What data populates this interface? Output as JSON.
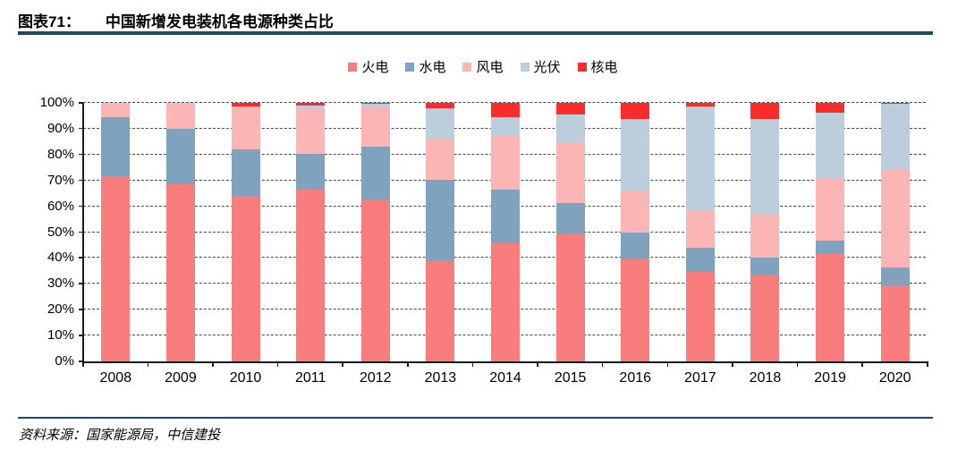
{
  "header": {
    "tag": "图表71：",
    "title": "中国新增发电装机各电源种类占比"
  },
  "footer": {
    "source": "资料来源：国家能源局，中信建投"
  },
  "colors": {
    "rule": "#1F4868",
    "thermal": "#F97D7D",
    "hydro": "#7FA3BE",
    "wind": "#FBB5B5",
    "solar": "#BCCDDC",
    "nuclear": "#FA2B2B"
  },
  "chart_data": {
    "type": "bar",
    "stacked": true,
    "percent_stacked": true,
    "title": "中国新增发电装机各电源种类占比",
    "xlabel": "",
    "ylabel": "",
    "ylim": [
      0,
      100
    ],
    "grid": "horizontal-dashed",
    "legend_position": "top-center",
    "categories": [
      "2008",
      "2009",
      "2010",
      "2011",
      "2012",
      "2013",
      "2014",
      "2015",
      "2016",
      "2017",
      "2018",
      "2019",
      "2020"
    ],
    "yticks": [
      "0%",
      "10%",
      "20%",
      "30%",
      "40%",
      "50%",
      "60%",
      "70%",
      "80%",
      "90%",
      "100%"
    ],
    "series": [
      {
        "key": "thermal",
        "name": "火电",
        "values": [
          71.5,
          68.5,
          64.0,
          66.5,
          62.5,
          39.0,
          45.7,
          49.2,
          39.6,
          34.5,
          33.1,
          41.9,
          29.5
        ]
      },
      {
        "key": "hydro",
        "name": "水电",
        "values": [
          23.0,
          21.5,
          18.0,
          13.7,
          20.5,
          31.3,
          20.9,
          12.0,
          10.2,
          9.4,
          7.0,
          4.8,
          6.8
        ]
      },
      {
        "key": "wind",
        "name": "风电",
        "values": [
          5.5,
          10.0,
          16.7,
          17.3,
          15.2,
          15.7,
          20.7,
          23.7,
          15.8,
          14.6,
          17.1,
          24.2,
          38.1
        ]
      },
      {
        "key": "solar",
        "name": "光伏",
        "values": [
          0.0,
          0.0,
          0.0,
          1.4,
          1.4,
          11.8,
          7.3,
          10.5,
          28.3,
          40.0,
          36.5,
          25.3,
          25.1
        ]
      },
      {
        "key": "nuclear",
        "name": "核电",
        "values": [
          0.0,
          0.0,
          1.3,
          1.1,
          0.4,
          2.2,
          5.4,
          4.6,
          6.1,
          1.5,
          6.3,
          3.8,
          0.5
        ]
      }
    ]
  }
}
